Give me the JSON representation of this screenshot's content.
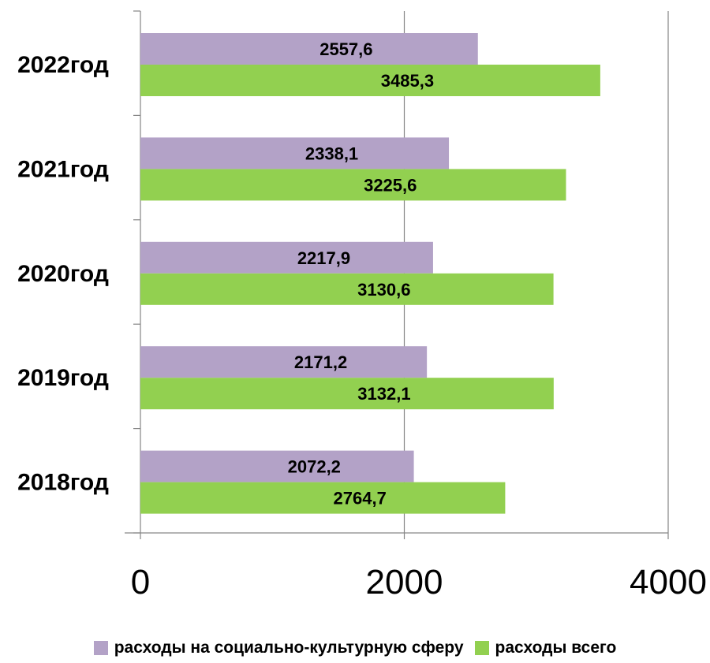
{
  "chart_data": {
    "type": "bar",
    "orientation": "horizontal",
    "categories": [
      "2022год",
      "2021год",
      "2020год",
      "2019год",
      "2018год"
    ],
    "series": [
      {
        "name": "расходы на социально-культурную сферу",
        "color": "#b3a2c7",
        "values": [
          2557.6,
          2338.1,
          2217.9,
          2171.2,
          2072.2
        ],
        "labels": [
          "2557,6",
          "2338,1",
          "2217,9",
          "2171,2",
          "2072,2"
        ]
      },
      {
        "name": "расходы всего",
        "color": "#92d050",
        "values": [
          3485.3,
          3225.6,
          3130.6,
          3132.1,
          2764.7
        ],
        "labels": [
          "3485,3",
          "3225,6",
          "3130,6",
          "3132,1",
          "2764,7"
        ]
      }
    ],
    "xlim": [
      0,
      4000
    ],
    "xticks": [
      "0",
      "2000",
      "4000"
    ],
    "grid": "vertical",
    "legend_position": "bottom"
  }
}
